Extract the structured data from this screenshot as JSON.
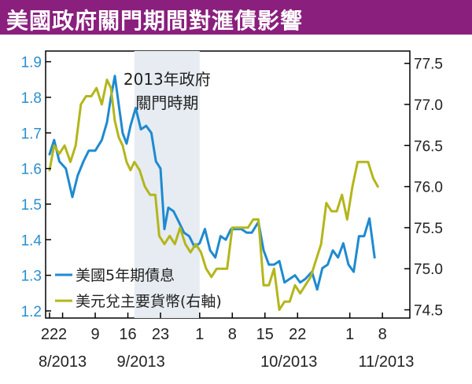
{
  "title": "美國政府關門期間對滙債影響",
  "colors": {
    "title_bg": "#8a1f7d",
    "shade": "#e6ecf2",
    "bond_line": "#1e8ad0",
    "usd_line": "#b3b61a",
    "left_axis": "#2a8fcf"
  },
  "chart_data": {
    "type": "line",
    "annotation": [
      "2013年政府",
      "關門時期"
    ],
    "shaded_period_x": [
      12,
      22
    ],
    "left_axis": {
      "ticks": [
        "1.2",
        "1.3",
        "1.4",
        "1.5",
        "1.6",
        "1.7",
        "1.8",
        "1.9"
      ],
      "range": [
        1.18,
        1.93
      ]
    },
    "right_axis": {
      "ticks": [
        "74.5",
        "75.0",
        "75.5",
        "76.0",
        "76.5",
        "77.0",
        "77.5"
      ],
      "range": [
        74.4,
        77.65
      ]
    },
    "x_ticks": [
      {
        "label": "22",
        "x": -1
      },
      {
        "label": "2",
        "x": 1
      },
      {
        "label": "9",
        "x": 6
      },
      {
        "label": "16",
        "x": 11
      },
      {
        "label": "23",
        "x": 16
      },
      {
        "label": "1",
        "x": 22
      },
      {
        "label": "8",
        "x": 27
      },
      {
        "label": "15",
        "x": 32
      },
      {
        "label": "22",
        "x": 37
      },
      {
        "label": "1",
        "x": 45
      },
      {
        "label": "8",
        "x": 50
      }
    ],
    "x_range": [
      -1.6,
      54.2
    ],
    "month_labels": [
      {
        "label": "8/2013",
        "x": -1
      },
      {
        "label": "9/2013",
        "x": 11
      },
      {
        "label": "10/2013",
        "x": 33
      },
      {
        "label": "11/2013",
        "x": 48
      }
    ],
    "series": [
      {
        "name": "美國5年期債息",
        "axis": "left",
        "color": "#1e8ad0",
        "values": [
          [
            -1.0,
            1.64
          ],
          [
            -0.3,
            1.68
          ],
          [
            0.5,
            1.62
          ],
          [
            1.5,
            1.6
          ],
          [
            2.5,
            1.52
          ],
          [
            3.3,
            1.58
          ],
          [
            4.2,
            1.62
          ],
          [
            5.0,
            1.65
          ],
          [
            6.0,
            1.65
          ],
          [
            7.0,
            1.68
          ],
          [
            7.8,
            1.73
          ],
          [
            8.4,
            1.8
          ],
          [
            9.0,
            1.86
          ],
          [
            9.6,
            1.78
          ],
          [
            10.2,
            1.7
          ],
          [
            10.8,
            1.67
          ],
          [
            11.4,
            1.72
          ],
          [
            12.2,
            1.77
          ],
          [
            13.0,
            1.71
          ],
          [
            13.8,
            1.72
          ],
          [
            14.6,
            1.7
          ],
          [
            15.3,
            1.62
          ],
          [
            16.0,
            1.6
          ],
          [
            16.6,
            1.43
          ],
          [
            17.2,
            1.49
          ],
          [
            18.0,
            1.48
          ],
          [
            18.8,
            1.45
          ],
          [
            19.6,
            1.42
          ],
          [
            20.4,
            1.41
          ],
          [
            21.2,
            1.38
          ],
          [
            22.0,
            1.39
          ],
          [
            22.8,
            1.43
          ],
          [
            23.6,
            1.37
          ],
          [
            24.4,
            1.35
          ],
          [
            25.2,
            1.41
          ],
          [
            26.0,
            1.4
          ],
          [
            26.8,
            1.43
          ],
          [
            27.6,
            1.43
          ],
          [
            28.4,
            1.43
          ],
          [
            29.2,
            1.42
          ],
          [
            30.0,
            1.42
          ],
          [
            31.0,
            1.45
          ],
          [
            31.8,
            1.37
          ],
          [
            32.6,
            1.33
          ],
          [
            33.4,
            1.33
          ],
          [
            34.2,
            1.34
          ],
          [
            35.0,
            1.28
          ],
          [
            35.8,
            1.29
          ],
          [
            36.6,
            1.3
          ],
          [
            37.4,
            1.28
          ],
          [
            38.2,
            1.29
          ],
          [
            39.2,
            1.31
          ],
          [
            40.0,
            1.26
          ],
          [
            40.8,
            1.32
          ],
          [
            41.6,
            1.33
          ],
          [
            42.4,
            1.37
          ],
          [
            43.2,
            1.35
          ],
          [
            44.0,
            1.39
          ],
          [
            44.8,
            1.33
          ],
          [
            45.6,
            1.31
          ],
          [
            46.4,
            1.41
          ],
          [
            47.2,
            1.41
          ],
          [
            48.0,
            1.46
          ],
          [
            48.8,
            1.35
          ]
        ]
      },
      {
        "name": "美元兌主要貨幣(右軸)",
        "axis": "right",
        "color": "#b3b61a",
        "values": [
          [
            -1.0,
            76.2
          ],
          [
            -0.3,
            76.5
          ],
          [
            0.5,
            76.4
          ],
          [
            1.3,
            76.5
          ],
          [
            2.2,
            76.3
          ],
          [
            3.0,
            76.5
          ],
          [
            3.8,
            77.0
          ],
          [
            4.6,
            77.1
          ],
          [
            5.4,
            77.1
          ],
          [
            6.2,
            77.2
          ],
          [
            7.0,
            77.0
          ],
          [
            7.8,
            77.3
          ],
          [
            8.4,
            77.2
          ],
          [
            9.0,
            76.8
          ],
          [
            9.6,
            76.6
          ],
          [
            10.2,
            76.5
          ],
          [
            10.8,
            76.3
          ],
          [
            11.4,
            76.2
          ],
          [
            12.0,
            76.3
          ],
          [
            12.8,
            76.2
          ],
          [
            13.6,
            76.0
          ],
          [
            14.4,
            75.9
          ],
          [
            15.2,
            75.9
          ],
          [
            15.8,
            75.4
          ],
          [
            16.6,
            75.3
          ],
          [
            17.4,
            75.4
          ],
          [
            18.2,
            75.3
          ],
          [
            19.0,
            75.5
          ],
          [
            19.8,
            75.3
          ],
          [
            20.6,
            75.2
          ],
          [
            21.4,
            75.3
          ],
          [
            22.2,
            75.2
          ],
          [
            23.0,
            75.0
          ],
          [
            23.8,
            74.9
          ],
          [
            24.6,
            75.0
          ],
          [
            25.4,
            75.0
          ],
          [
            26.2,
            75.0
          ],
          [
            27.0,
            75.5
          ],
          [
            27.8,
            75.5
          ],
          [
            28.6,
            75.5
          ],
          [
            29.4,
            75.5
          ],
          [
            30.2,
            75.6
          ],
          [
            31.0,
            75.6
          ],
          [
            31.8,
            74.8
          ],
          [
            32.6,
            74.8
          ],
          [
            33.4,
            75.0
          ],
          [
            34.2,
            74.5
          ],
          [
            35.0,
            74.6
          ],
          [
            35.8,
            74.6
          ],
          [
            36.6,
            74.8
          ],
          [
            37.4,
            74.7
          ],
          [
            38.2,
            74.8
          ],
          [
            39.0,
            74.9
          ],
          [
            39.8,
            75.1
          ],
          [
            40.6,
            75.3
          ],
          [
            41.4,
            75.8
          ],
          [
            42.2,
            75.7
          ],
          [
            43.0,
            75.7
          ],
          [
            43.8,
            75.9
          ],
          [
            44.6,
            75.6
          ],
          [
            45.4,
            76.0
          ],
          [
            46.2,
            76.3
          ],
          [
            47.0,
            76.3
          ],
          [
            47.8,
            76.3
          ],
          [
            48.6,
            76.1
          ],
          [
            49.3,
            76.0
          ]
        ]
      }
    ]
  }
}
